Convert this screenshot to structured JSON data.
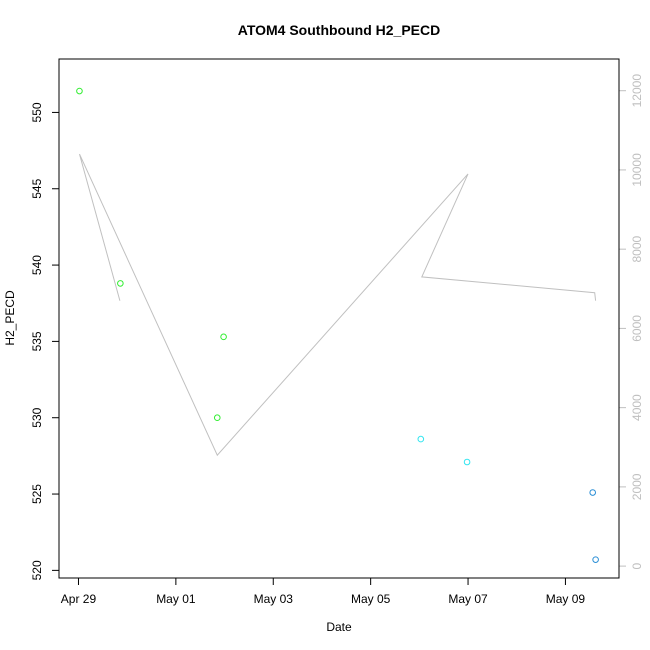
{
  "chart_data": {
    "type": "scatter",
    "title": "ATOM4 Southbound H2_PECD",
    "xlabel": "Date",
    "ylabel": "H2_PECD",
    "x_ticks": [
      "Apr 29",
      "May 01",
      "May 03",
      "May 05",
      "May 07",
      "May 09"
    ],
    "x_tick_days": [
      0,
      2,
      4,
      6,
      8,
      10
    ],
    "xlim_days": [
      -0.4,
      11.1
    ],
    "ylim": [
      519.5,
      553.5
    ],
    "y_ticks": [
      520,
      525,
      530,
      535,
      540,
      545,
      550
    ],
    "y2lim": [
      -300,
      12800
    ],
    "y2_ticks": [
      0,
      2000,
      4000,
      6000,
      8000,
      10000,
      12000
    ],
    "series": [
      {
        "color": "#33ee33",
        "points": [
          {
            "day": 0.02,
            "y": 551.4
          },
          {
            "day": 0.86,
            "y": 538.8
          },
          {
            "day": 2.85,
            "y": 530.0
          },
          {
            "day": 2.98,
            "y": 535.3
          }
        ]
      },
      {
        "color": "#33e5f0",
        "points": [
          {
            "day": 7.03,
            "y": 528.6
          },
          {
            "day": 7.98,
            "y": 527.1
          }
        ]
      },
      {
        "color": "#2b8fd6",
        "points": [
          {
            "day": 10.56,
            "y": 525.1
          },
          {
            "day": 10.62,
            "y": 520.7
          }
        ]
      }
    ],
    "secondary_line": {
      "color": "#c0c0c0",
      "points": [
        {
          "day": 0.85,
          "v": 6700
        },
        {
          "day": 0.02,
          "v": 10400
        },
        {
          "day": 2.85,
          "v": 2800
        },
        {
          "day": 8.0,
          "v": 9900
        },
        {
          "day": 7.05,
          "v": 7300
        },
        {
          "day": 10.6,
          "v": 6900
        },
        {
          "day": 10.62,
          "v": 6700
        }
      ]
    }
  }
}
